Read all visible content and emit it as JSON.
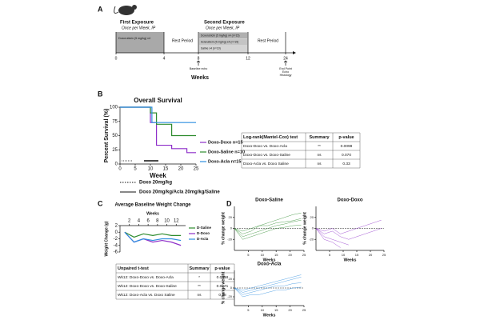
{
  "panels": {
    "a": "A",
    "b": "B",
    "c": "C",
    "d": "D"
  },
  "timeline": {
    "first_title": "First Exposure",
    "first_sub": "Once per Week, IP",
    "first_drug": "Doxorubicin (5 mg/kg) x4",
    "rest1": "Rest Period",
    "second_title": "Second Exposure",
    "second_sub": "Once per Week, IP",
    "second_drugs": [
      "Doxorubicin (5 mg/kg) x4 (n=15)",
      "Aclarubicin (5 mg/kg) x4 (n=15)",
      "Saline x4 (n=10)"
    ],
    "rest2": "Rest Period",
    "ticks": [
      0,
      4,
      8,
      12,
      24
    ],
    "baseline": "Baseline echo",
    "endpoint": [
      "End Point",
      "Echo",
      "Histology"
    ],
    "xlabel": "Weeks"
  },
  "chart_data": [
    {
      "type": "line",
      "title": "Overall Survival",
      "xlabel": "Week",
      "ylabel": "Percent Survival (%)",
      "xlim": [
        0,
        25
      ],
      "ylim": [
        0,
        100
      ],
      "xticks": [
        0,
        5,
        10,
        15,
        20,
        25
      ],
      "yticks": [
        0,
        25,
        50,
        75,
        100
      ],
      "legend": "right",
      "series": [
        {
          "name": "Doxo-Doxo n=15",
          "color": "#8e2fc9",
          "x": [
            0,
            10,
            10,
            12,
            12,
            17,
            17,
            22,
            22,
            25
          ],
          "values": [
            100,
            100,
            73,
            73,
            33,
            33,
            27,
            27,
            20,
            20
          ]
        },
        {
          "name": "Doxo-Saline n=10",
          "color": "#2e8b2e",
          "x": [
            0,
            10,
            10,
            12,
            12,
            17,
            17,
            25
          ],
          "values": [
            100,
            100,
            90,
            90,
            70,
            70,
            50,
            50
          ]
        },
        {
          "name": "Doxo-Acla n=15",
          "color": "#2f8fe0",
          "x": [
            0,
            10.5,
            10.5,
            25
          ],
          "values": [
            100,
            100,
            73,
            73
          ]
        }
      ]
    },
    {
      "type": "line",
      "title": "Average Baseline Weight Change",
      "xlabel": "Weeks",
      "ylabel": "Weight Change (g)",
      "xlim": [
        0,
        14
      ],
      "ylim": [
        -6,
        2
      ],
      "xticks": [
        2,
        4,
        6,
        8,
        10,
        12
      ],
      "yticks": [
        2,
        0,
        -2,
        -4,
        -6
      ],
      "x_axis_position": "top",
      "legend": "right",
      "series": [
        {
          "name": "D-Saline",
          "color": "#2e8b2e",
          "x": [
            1,
            3,
            5,
            7,
            9,
            11,
            13
          ],
          "values": [
            0,
            -1.5,
            -0.5,
            -1,
            -0.5,
            -1,
            -1
          ]
        },
        {
          "name": "D-Doxo",
          "color": "#8e2fc9",
          "x": [
            1,
            3,
            5,
            7,
            9,
            11,
            13
          ],
          "values": [
            0,
            -3,
            -2,
            -3,
            -2.5,
            -3,
            -4
          ]
        },
        {
          "name": "D-Acla",
          "color": "#2f8fe0",
          "x": [
            1,
            3,
            5,
            7,
            9,
            11,
            13
          ],
          "values": [
            0,
            -3,
            -2,
            -2.5,
            -2,
            -2,
            -2.5
          ]
        }
      ]
    },
    {
      "type": "line",
      "title": "Doxo-Saline",
      "xlabel": "Weeks",
      "ylabel": "% change weight",
      "color": "#2e8b2e",
      "zero_line": true,
      "xlim": [
        0,
        25
      ],
      "ylim": [
        -40,
        40
      ],
      "xticks": [
        5,
        10,
        15,
        20,
        25
      ],
      "yticks": [
        -20,
        0,
        20
      ],
      "x": [
        0,
        3,
        6,
        9,
        12,
        15,
        18,
        21,
        24
      ],
      "series": [
        {
          "values": [
            0,
            -10,
            -5,
            5,
            10,
            15,
            20,
            25,
            28
          ]
        },
        {
          "values": [
            0,
            -15,
            -10,
            -5,
            0,
            5,
            8,
            12,
            15
          ]
        },
        {
          "values": [
            0,
            -5,
            0,
            5,
            5,
            10,
            12,
            14,
            18
          ]
        },
        {
          "values": [
            0,
            -20,
            -15,
            -10,
            -5,
            0,
            2,
            5,
            6
          ]
        }
      ]
    },
    {
      "type": "line",
      "title": "Doxo-Doxo",
      "xlabel": "Weeks",
      "ylabel": "% change weight",
      "color": "#8e2fc9",
      "zero_line": true,
      "xlim": [
        0,
        25
      ],
      "ylim": [
        -40,
        40
      ],
      "xticks": [
        5,
        10,
        15,
        20,
        25
      ],
      "yticks": [
        -20,
        0,
        20
      ],
      "x": [
        0,
        3,
        6,
        9,
        12,
        15,
        18,
        21,
        24
      ],
      "series": [
        {
          "values": [
            0,
            -15,
            -20,
            -25,
            -30,
            null,
            null,
            null,
            null
          ]
        },
        {
          "values": [
            0,
            -10,
            -5,
            -15,
            -20,
            -15,
            -10,
            -5,
            0
          ]
        },
        {
          "values": [
            0,
            -5,
            0,
            -10,
            -5,
            0,
            5,
            10,
            15
          ]
        },
        {
          "values": [
            0,
            -20,
            -25,
            -35,
            null,
            null,
            null,
            null,
            null
          ]
        }
      ]
    },
    {
      "type": "line",
      "title": "Doxo-Acla",
      "xlabel": "Weeks",
      "ylabel": "% change weight",
      "color": "#2f8fe0",
      "zero_line": true,
      "xlim": [
        0,
        25
      ],
      "ylim": [
        -40,
        40
      ],
      "xticks": [
        5,
        10,
        15,
        20,
        25
      ],
      "yticks": [
        -20,
        0,
        20
      ],
      "x": [
        0,
        3,
        6,
        9,
        12,
        15,
        18,
        21,
        24
      ],
      "series": [
        {
          "values": [
            0,
            -10,
            -5,
            0,
            5,
            10,
            15,
            20,
            25
          ]
        },
        {
          "values": [
            0,
            -15,
            -10,
            -5,
            0,
            5,
            5,
            10,
            12
          ]
        },
        {
          "values": [
            0,
            -5,
            0,
            5,
            10,
            15,
            20,
            25,
            30
          ]
        },
        {
          "values": [
            0,
            -20,
            -15,
            -15,
            -10,
            -5,
            -5,
            0,
            2
          ]
        }
      ]
    }
  ],
  "dosing_legend": [
    "Doxo 20mg/kg",
    "Doxo 20mg/kg/Acla 20mg/kg/Saline"
  ],
  "survival_table": {
    "header": [
      "Log-rank(Mantel-Cox) test",
      "Summary",
      "p-value"
    ],
    "rows": [
      [
        "Doxo-Doxo vs. Doxo-Acla",
        "**",
        "0.0098"
      ],
      [
        "Doxo-Doxo vs. Doxo-Saline",
        "ns",
        "0.070"
      ],
      [
        "Doxo-Acla vs. Doxo Saline",
        "ns",
        "0.33"
      ]
    ]
  },
  "ttest_table": {
    "header": [
      "Unpaired t-test",
      "Summary",
      "p-value"
    ],
    "rows": [
      [
        "Wk12: Doxo-Doxo vs. Doxo-Acla",
        "*",
        "0.0418"
      ],
      [
        "Wk12: Doxo-Doxo vs. Doxo-Saline",
        "**",
        "0.0071"
      ],
      [
        "Wk12: Doxo-Acla vs. Doxo Saline",
        "ns",
        "0.98"
      ]
    ]
  }
}
